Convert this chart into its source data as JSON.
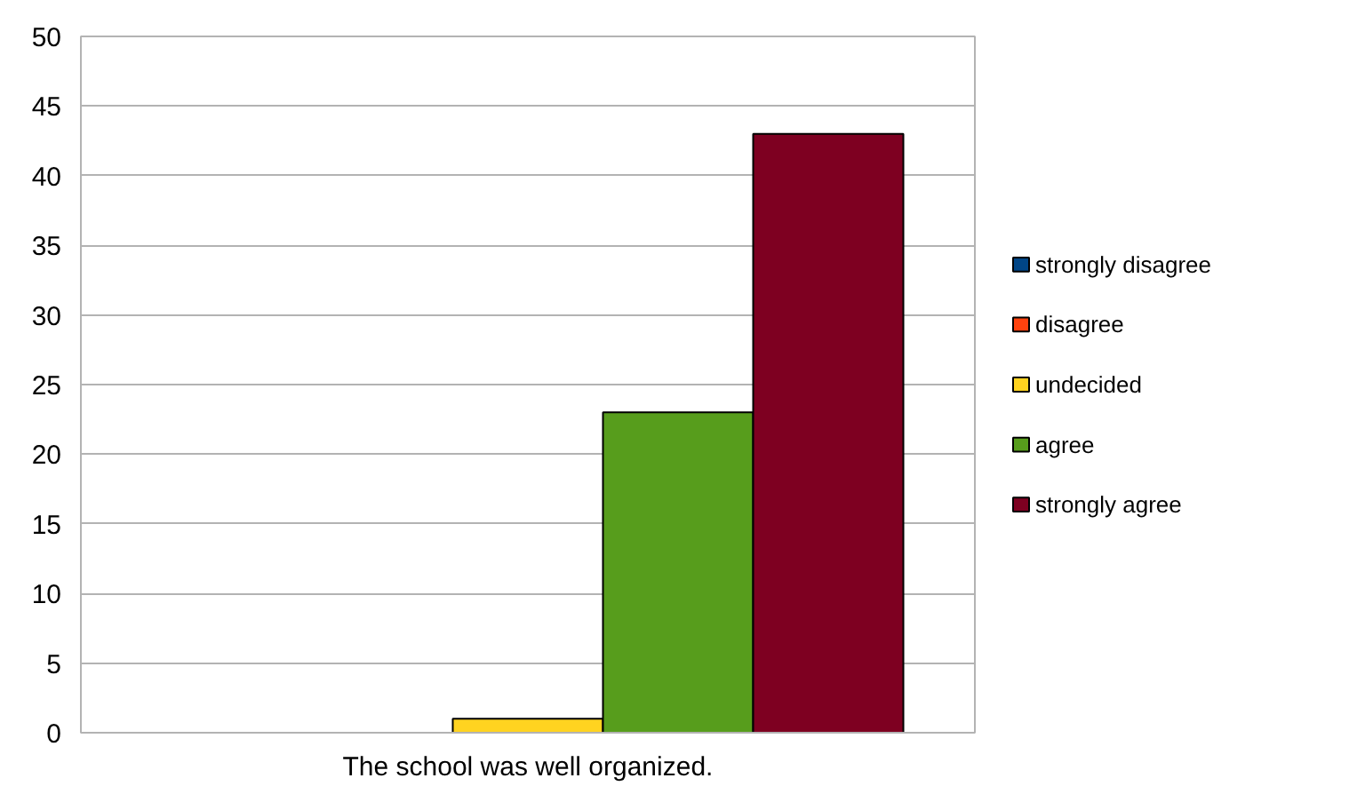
{
  "chart_data": {
    "type": "bar",
    "categories": [
      "The school was well organized."
    ],
    "series": [
      {
        "name": "strongly disagree",
        "color": "#004586",
        "values": [
          0
        ]
      },
      {
        "name": "disagree",
        "color": "#ff420e",
        "values": [
          0
        ]
      },
      {
        "name": "undecided",
        "color": "#ffd320",
        "values": [
          1
        ]
      },
      {
        "name": "agree",
        "color": "#579d1c",
        "values": [
          23
        ]
      },
      {
        "name": "strongly agree",
        "color": "#7e0021",
        "values": [
          43
        ]
      }
    ],
    "ylim": [
      0,
      50
    ],
    "yticks": [
      0,
      5,
      10,
      15,
      20,
      25,
      30,
      35,
      40,
      45,
      50
    ],
    "grid": "y",
    "legend": "right"
  }
}
